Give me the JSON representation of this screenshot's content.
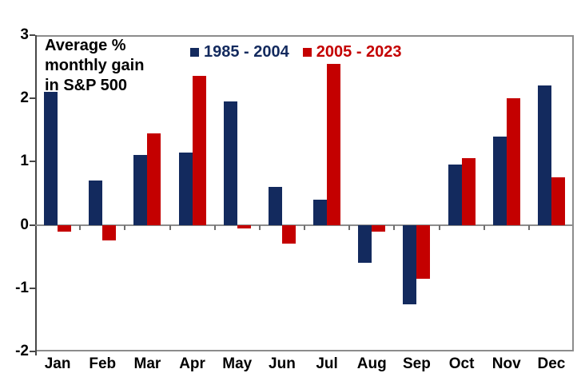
{
  "title": {
    "text": "Average %\nmonthly gain\nin S&P 500"
  },
  "legend": {
    "items": [
      {
        "label": "1985 - 2004",
        "color": "#132A5E"
      },
      {
        "label": "2005 - 2023",
        "color": "#C40000"
      }
    ]
  },
  "chart_data": {
    "type": "bar",
    "title": "Average % monthly gain in S&P 500",
    "categories": [
      "Jan",
      "Feb",
      "Mar",
      "Apr",
      "May",
      "Jun",
      "Jul",
      "Aug",
      "Sep",
      "Oct",
      "Nov",
      "Dec"
    ],
    "series": [
      {
        "name": "1985 - 2004",
        "color": "#132A5E",
        "values": [
          2.1,
          0.7,
          1.1,
          1.15,
          1.95,
          0.6,
          0.4,
          -0.6,
          -1.25,
          0.95,
          1.4,
          2.2
        ]
      },
      {
        "name": "2005 - 2023",
        "color": "#C40000",
        "values": [
          -0.1,
          -0.25,
          1.45,
          2.35,
          -0.05,
          -0.3,
          2.55,
          -0.1,
          -0.85,
          1.05,
          2.0,
          0.75
        ]
      }
    ],
    "xlabel": "",
    "ylabel": "",
    "ylim": [
      -2,
      3
    ],
    "yticks": [
      3,
      2,
      1,
      0,
      -1,
      -2
    ],
    "grid": false,
    "legend_position": "top-center"
  }
}
